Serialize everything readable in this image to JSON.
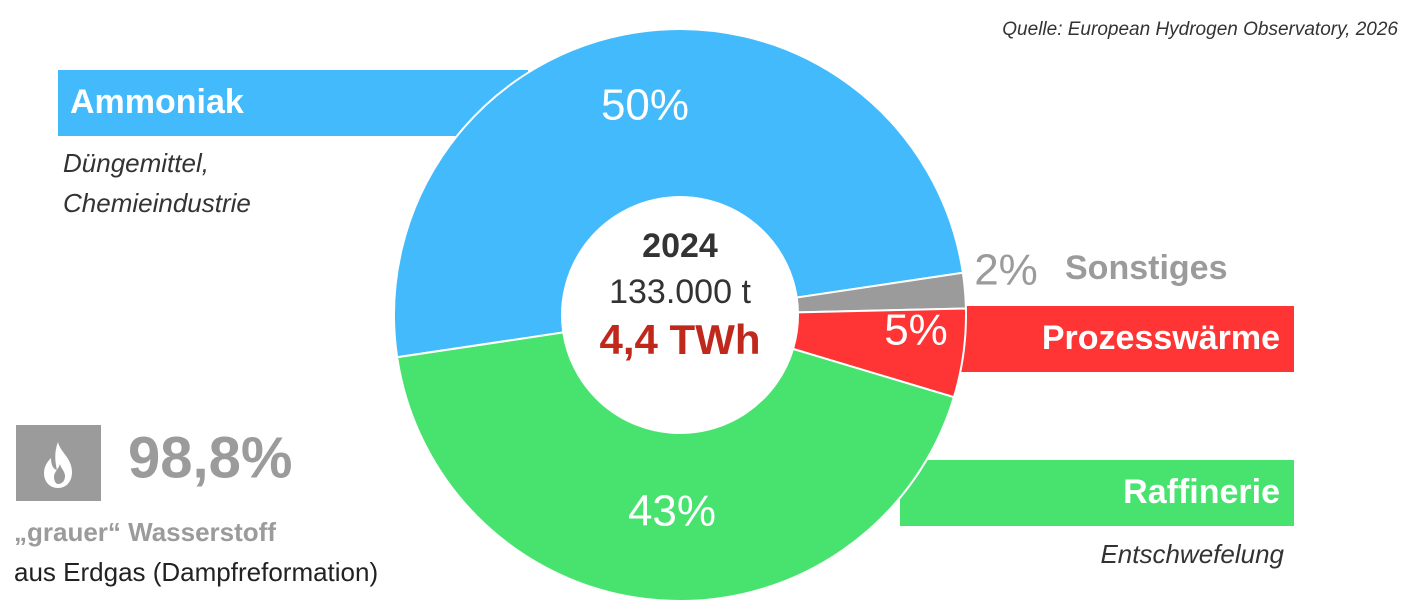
{
  "chart_data": {
    "type": "donut",
    "source": "Quelle: European Hydrogen Observatory, 2026",
    "categories": [
      "Ammoniak",
      "Sonstiges",
      "Prozesswärme",
      "Raffinerie"
    ],
    "values": [
      50,
      2,
      5,
      43
    ],
    "value_labels": [
      "50%",
      "2%",
      "5%",
      "43%"
    ],
    "colors": [
      "#42bafc",
      "#9b9b9b",
      "#ff3434",
      "#48e36f"
    ],
    "notes": {
      "Ammoniak": [
        "Düngemittel,",
        "Chemieindustrie"
      ],
      "Raffinerie": [
        "Entschwefelung"
      ]
    },
    "center": {
      "year": "2024",
      "mass": "133.000 t",
      "energy": "4,4 TWh"
    }
  },
  "highlight": {
    "share": "98,8%",
    "title": "„grauer“ Wasserstoff",
    "subtitle": "aus Erdgas (Dampfreformation)"
  }
}
